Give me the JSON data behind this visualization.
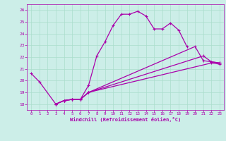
{
  "xlabel": "Windchill (Refroidissement éolien,°C)",
  "bg_color": "#cceee8",
  "line_color": "#aa00aa",
  "grid_color": "#aaddcc",
  "xlim": [
    -0.5,
    23.5
  ],
  "ylim": [
    17.5,
    26.5
  ],
  "xticks": [
    0,
    1,
    2,
    3,
    4,
    5,
    6,
    7,
    8,
    9,
    10,
    11,
    12,
    13,
    14,
    15,
    16,
    17,
    18,
    19,
    20,
    21,
    22,
    23
  ],
  "yticks": [
    18,
    19,
    20,
    21,
    22,
    23,
    24,
    25,
    26
  ],
  "s1_x": [
    0,
    1,
    3,
    4,
    5,
    6,
    7,
    8,
    9,
    10,
    11,
    12,
    13,
    14,
    15,
    16,
    17,
    18,
    19
  ],
  "s1_y": [
    20.6,
    19.9,
    18.0,
    18.3,
    18.4,
    18.4,
    19.6,
    22.1,
    23.3,
    24.7,
    25.65,
    25.65,
    25.9,
    25.5,
    24.4,
    24.4,
    24.9,
    24.3,
    22.9
  ],
  "s2_x": [
    3,
    4,
    5,
    6,
    7,
    20,
    21,
    22,
    23
  ],
  "s2_y": [
    18.0,
    18.3,
    18.4,
    18.4,
    19.0,
    22.9,
    21.7,
    21.6,
    21.5
  ],
  "s3_x": [
    3,
    4,
    5,
    6,
    7,
    21,
    22,
    23
  ],
  "s3_y": [
    18.0,
    18.3,
    18.4,
    18.4,
    19.0,
    22.1,
    21.6,
    21.5
  ],
  "s4_x": [
    3,
    4,
    5,
    6,
    7,
    22,
    23
  ],
  "s4_y": [
    18.0,
    18.3,
    18.4,
    18.4,
    19.0,
    21.5,
    21.4
  ]
}
